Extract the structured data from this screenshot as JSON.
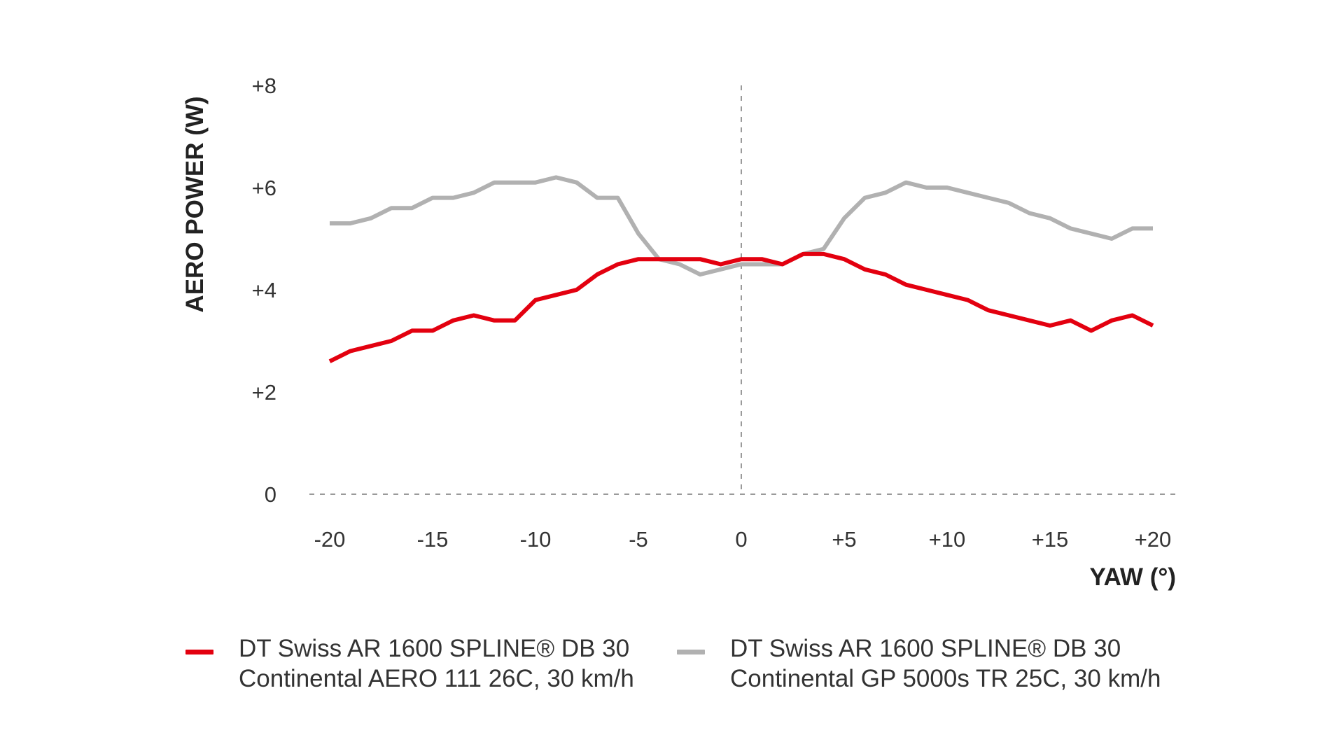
{
  "chart_data": {
    "type": "line",
    "ylabel": "AERO POWER (W)",
    "xlabel": "YAW (°)",
    "xlim": [
      -20,
      20
    ],
    "ylim": [
      0,
      8
    ],
    "x_ticks": [
      {
        "value": -20,
        "label": "-20"
      },
      {
        "value": -15,
        "label": "-15"
      },
      {
        "value": -10,
        "label": "-10"
      },
      {
        "value": -5,
        "label": "-5"
      },
      {
        "value": 0,
        "label": "0"
      },
      {
        "value": 5,
        "label": "+5"
      },
      {
        "value": 10,
        "label": "+10"
      },
      {
        "value": 15,
        "label": "+15"
      },
      {
        "value": 20,
        "label": "+20"
      }
    ],
    "y_ticks": [
      {
        "value": 0,
        "label": "0"
      },
      {
        "value": 2,
        "label": "+2"
      },
      {
        "value": 4,
        "label": "+4"
      },
      {
        "value": 6,
        "label": "+6"
      },
      {
        "value": 8,
        "label": "+8"
      }
    ],
    "x": [
      -20,
      -19,
      -18,
      -17,
      -16,
      -15,
      -14,
      -13,
      -12,
      -11,
      -10,
      -9,
      -8,
      -7,
      -6,
      -5,
      -4,
      -3,
      -2,
      -1,
      0,
      1,
      2,
      3,
      4,
      5,
      6,
      7,
      8,
      9,
      10,
      11,
      12,
      13,
      14,
      15,
      16,
      17,
      18,
      19,
      20
    ],
    "series": [
      {
        "name": "DT Swiss AR 1600 SPLINE® DB 30 / Continental AERO 111 26C, 30 km/h",
        "color": "#e3000f",
        "values": [
          2.6,
          2.8,
          2.9,
          3.0,
          3.2,
          3.2,
          3.4,
          3.5,
          3.4,
          3.4,
          3.8,
          3.9,
          4.0,
          4.3,
          4.5,
          4.6,
          4.6,
          4.6,
          4.6,
          4.5,
          4.6,
          4.6,
          4.5,
          4.7,
          4.7,
          4.6,
          4.4,
          4.3,
          4.1,
          4.0,
          3.9,
          3.8,
          3.6,
          3.5,
          3.4,
          3.3,
          3.4,
          3.2,
          3.4,
          3.5,
          3.3
        ]
      },
      {
        "name": "DT Swiss AR 1600 SPLINE® DB 30 / Continental GP 5000s TR 25C, 30 km/h",
        "color": "#b1b1b1",
        "values": [
          5.3,
          5.3,
          5.4,
          5.6,
          5.6,
          5.8,
          5.8,
          5.9,
          6.1,
          6.1,
          6.1,
          6.2,
          6.1,
          5.8,
          5.8,
          5.1,
          4.6,
          4.5,
          4.3,
          4.4,
          4.5,
          4.5,
          4.5,
          4.7,
          4.8,
          5.4,
          5.8,
          5.9,
          6.1,
          6.0,
          6.0,
          5.9,
          5.8,
          5.7,
          5.5,
          5.4,
          5.2,
          5.1,
          5.0,
          5.2,
          5.2
        ]
      }
    ],
    "reference_line_x": 0,
    "grid": false
  },
  "legend": [
    {
      "line1": "DT Swiss AR 1600 SPLINE® DB 30",
      "line2": "Continental AERO 111 26C, 30 km/h",
      "color": "#e3000f"
    },
    {
      "line1": "DT Swiss AR 1600 SPLINE® DB 30",
      "line2": "Continental GP 5000s TR 25C, 30 km/h",
      "color": "#b1b1b1"
    }
  ]
}
